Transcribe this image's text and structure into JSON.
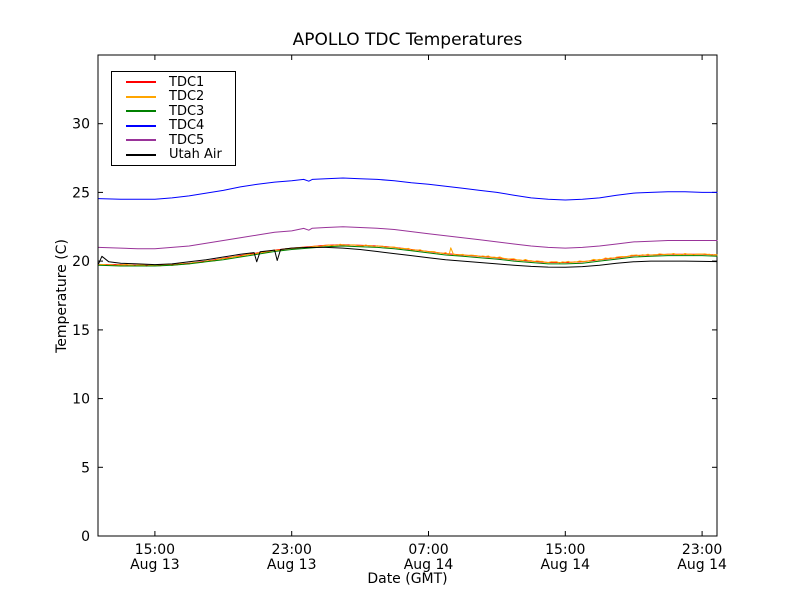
{
  "figure": {
    "title": "APOLLO TDC Temperatures",
    "xlabel": "Date (GMT)",
    "ylabel": "Temperature (C)",
    "background": "#ffffff",
    "frame_color": "#000000"
  },
  "chart_data": {
    "type": "line",
    "title": "APOLLO TDC Temperatures",
    "xlabel": "Date (GMT)",
    "ylabel": "Temperature (C)",
    "grid": false,
    "legend_position": "upper left",
    "x_unit": "hours since Aug 13 00:00 GMT",
    "xlim": [
      11.67,
      47.87
    ],
    "ylim": [
      0,
      35
    ],
    "yticks": [
      0,
      5,
      10,
      15,
      20,
      25,
      30
    ],
    "xticks": [
      {
        "value": 15,
        "time": "15:00",
        "date": "Aug 13"
      },
      {
        "value": 23,
        "time": "23:00",
        "date": "Aug 13"
      },
      {
        "value": 31,
        "time": "07:00",
        "date": "Aug 14"
      },
      {
        "value": 39,
        "time": "15:00",
        "date": "Aug 14"
      },
      {
        "value": 47,
        "time": "23:00",
        "date": "Aug 14"
      }
    ],
    "series": [
      {
        "name": "TDC1",
        "color": "#ff0000",
        "x": [
          11.7,
          13,
          14,
          15,
          16,
          17,
          18,
          19,
          20,
          21,
          22,
          23,
          24,
          25,
          26,
          27,
          28,
          29,
          30,
          31,
          32,
          33,
          34,
          35,
          36,
          37,
          38,
          39,
          40,
          41,
          42,
          43,
          44,
          45,
          46,
          47,
          47.9
        ],
        "y": [
          19.75,
          19.75,
          19.7,
          19.7,
          19.75,
          19.85,
          20.0,
          20.2,
          20.4,
          20.6,
          20.8,
          20.95,
          21.05,
          21.15,
          21.2,
          21.15,
          21.1,
          21.0,
          20.85,
          20.7,
          20.55,
          20.45,
          20.35,
          20.25,
          20.1,
          20.0,
          19.9,
          19.9,
          19.95,
          20.1,
          20.25,
          20.4,
          20.45,
          20.5,
          20.5,
          20.5,
          20.45
        ]
      },
      {
        "name": "TDC2",
        "color": "#ffa500",
        "noise": 0.06,
        "x": [
          11.7,
          13,
          14,
          15,
          16,
          17,
          18,
          19,
          20,
          21,
          22,
          23,
          24,
          25,
          26,
          27,
          28,
          29,
          30,
          31,
          32,
          32.2,
          32.3,
          32.45,
          33,
          34,
          35,
          36,
          37,
          38,
          39,
          40,
          41,
          42,
          43,
          44,
          45,
          46,
          47,
          47.9
        ],
        "y": [
          19.75,
          19.75,
          19.7,
          19.7,
          19.75,
          19.85,
          20.0,
          20.2,
          20.4,
          20.6,
          20.8,
          20.95,
          21.05,
          21.15,
          21.2,
          21.15,
          21.1,
          21.0,
          20.85,
          20.7,
          20.55,
          20.5,
          20.95,
          20.5,
          20.45,
          20.35,
          20.25,
          20.1,
          20.0,
          19.9,
          19.9,
          19.95,
          20.1,
          20.25,
          20.4,
          20.45,
          20.5,
          20.5,
          20.5,
          20.45
        ]
      },
      {
        "name": "TDC3",
        "color": "#008000",
        "x": [
          11.7,
          13,
          14,
          15,
          16,
          17,
          18,
          19,
          20,
          21,
          22,
          23,
          24,
          25,
          26,
          27,
          28,
          29,
          30,
          31,
          32,
          33,
          34,
          35,
          36,
          37,
          38,
          39,
          40,
          41,
          42,
          43,
          44,
          45,
          46,
          47,
          47.9
        ],
        "y": [
          19.7,
          19.65,
          19.65,
          19.65,
          19.7,
          19.8,
          19.95,
          20.1,
          20.3,
          20.5,
          20.7,
          20.85,
          20.95,
          21.05,
          21.1,
          21.05,
          21.0,
          20.9,
          20.75,
          20.6,
          20.45,
          20.35,
          20.25,
          20.15,
          20.0,
          19.9,
          19.8,
          19.8,
          19.85,
          20.0,
          20.15,
          20.3,
          20.35,
          20.4,
          20.4,
          20.4,
          20.35
        ]
      },
      {
        "name": "TDC4",
        "color": "#0000ff",
        "x": [
          11.7,
          13,
          14,
          15,
          16,
          17,
          18,
          19,
          20,
          21,
          22,
          23,
          23.7,
          24,
          24.2,
          25,
          26,
          27,
          28,
          29,
          30,
          31,
          32,
          33,
          34,
          35,
          36,
          37,
          38,
          39,
          40,
          41,
          42,
          43,
          44,
          45,
          46,
          47,
          47.9
        ],
        "y": [
          24.55,
          24.5,
          24.5,
          24.5,
          24.6,
          24.75,
          24.95,
          25.15,
          25.4,
          25.6,
          25.75,
          25.85,
          25.95,
          25.82,
          25.95,
          26.0,
          26.05,
          26.0,
          25.95,
          25.85,
          25.7,
          25.6,
          25.45,
          25.3,
          25.15,
          25.0,
          24.8,
          24.6,
          24.5,
          24.45,
          24.5,
          24.6,
          24.8,
          24.95,
          25.0,
          25.05,
          25.05,
          25.0,
          25.0
        ]
      },
      {
        "name": "TDC5",
        "color": "#993399",
        "x": [
          11.7,
          13,
          14,
          15,
          16,
          17,
          18,
          19,
          20,
          21,
          22,
          23,
          23.7,
          24,
          24.2,
          25,
          26,
          27,
          28,
          29,
          30,
          31,
          32,
          33,
          34,
          35,
          36,
          37,
          38,
          39,
          40,
          41,
          42,
          43,
          44,
          45,
          46,
          47,
          47.9
        ],
        "y": [
          21.0,
          20.95,
          20.9,
          20.9,
          21.0,
          21.1,
          21.3,
          21.5,
          21.7,
          21.9,
          22.1,
          22.2,
          22.38,
          22.25,
          22.4,
          22.45,
          22.5,
          22.45,
          22.4,
          22.3,
          22.15,
          22.0,
          21.85,
          21.7,
          21.55,
          21.4,
          21.25,
          21.1,
          21.0,
          20.95,
          21.0,
          21.1,
          21.25,
          21.4,
          21.45,
          21.5,
          21.5,
          21.5,
          21.5
        ]
      },
      {
        "name": "Utah Air",
        "color": "#000000",
        "x": [
          11.7,
          11.9,
          12.3,
          13,
          14,
          15,
          16,
          17,
          18,
          19,
          20,
          20.8,
          20.95,
          21.15,
          22,
          22.15,
          22.35,
          23,
          24,
          25,
          26,
          27,
          28,
          29,
          30,
          31,
          32,
          33,
          34,
          35,
          36,
          37,
          38,
          39,
          40,
          41,
          42,
          43,
          44,
          45,
          46,
          47,
          47.9
        ],
        "y": [
          19.8,
          20.35,
          19.95,
          19.85,
          19.8,
          19.75,
          19.8,
          19.95,
          20.1,
          20.3,
          20.5,
          20.62,
          19.95,
          20.68,
          20.8,
          20.05,
          20.85,
          20.95,
          21.0,
          21.0,
          20.95,
          20.85,
          20.7,
          20.55,
          20.4,
          20.25,
          20.1,
          20.0,
          19.9,
          19.8,
          19.7,
          19.62,
          19.57,
          19.55,
          19.6,
          19.7,
          19.85,
          19.95,
          20.0,
          20.0,
          20.0,
          19.98,
          19.97
        ]
      }
    ]
  }
}
